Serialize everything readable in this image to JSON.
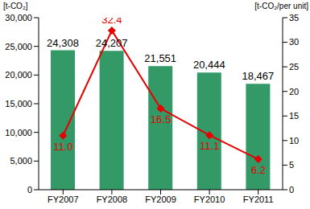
{
  "chart_data": {
    "type": "bar",
    "categories": [
      "FY2007",
      "FY2008",
      "FY2009",
      "FY2010",
      "FY2011"
    ],
    "y_label": "[t-CO₂]",
    "y2_label": "[t-CO₂/per unit]",
    "ylim": [
      0,
      30000
    ],
    "yticks": [
      0,
      {
        "value": 5000,
        "label": "5,000"
      },
      {
        "value": 10000,
        "label": "10,000"
      },
      {
        "value": 15000,
        "label": "15,000"
      },
      {
        "value": 20000,
        "label": "20,000"
      },
      {
        "value": 25000,
        "label": "25,000"
      },
      {
        "value": 30000,
        "label": "30,000"
      }
    ],
    "y2lim": [
      0,
      35
    ],
    "y2ticks": [
      0,
      5,
      10,
      15,
      20,
      25,
      30,
      35
    ],
    "grid": false,
    "data_labels": true,
    "series": [
      {
        "type": "bar",
        "color": "#339966",
        "values": [
          24308,
          24207,
          21551,
          20444,
          18467
        ],
        "value_labels": [
          "24,308",
          "24,207",
          "21,551",
          "20,444",
          "18,467"
        ]
      },
      {
        "type": "line",
        "axis": "y2",
        "color": "#e60000",
        "marker": "diamond",
        "values": [
          11.0,
          32.4,
          16.5,
          11.1,
          6.2
        ],
        "value_labels": [
          "11.0",
          "32.4",
          "16.5",
          "11.1",
          "6.2"
        ]
      }
    ]
  }
}
